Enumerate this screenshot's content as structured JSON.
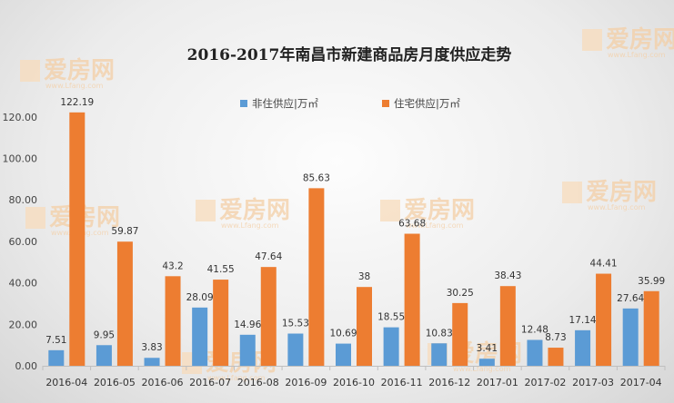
{
  "watermark": {
    "brand": "爱房网",
    "url": "www.Lfang.com"
  },
  "chart_data": {
    "type": "bar",
    "title": "2016-2017年南昌市新建商品房月度供应走势",
    "categories": [
      "2016-04",
      "2016-05",
      "2016-06",
      "2016-07",
      "2016-08",
      "2016-09",
      "2016-10",
      "2016-11",
      "2016-12",
      "2017-01",
      "2017-02",
      "2017-03",
      "2017-04"
    ],
    "series": [
      {
        "name": "非住供应|万㎡",
        "color": "#5b9bd5",
        "values": [
          7.51,
          9.95,
          3.83,
          28.09,
          14.96,
          15.53,
          10.69,
          18.55,
          10.83,
          3.41,
          12.48,
          17.14,
          27.64
        ],
        "labels": [
          "7.51",
          "9.95",
          "3.83",
          "28.09",
          "14.96",
          "15.53",
          "10.69",
          "18.55",
          "10.83",
          "3.41",
          "12.48",
          "17.14",
          "27.64"
        ]
      },
      {
        "name": "住宅供应|万㎡",
        "color": "#ed7d31",
        "values": [
          122.19,
          59.87,
          43.2,
          41.55,
          47.64,
          85.63,
          38,
          63.68,
          30.25,
          38.43,
          8.73,
          44.41,
          35.99
        ],
        "labels": [
          "122.19",
          "59.87",
          "43.2",
          "41.55",
          "47.64",
          "85.63",
          "38",
          "63.68",
          "30.25",
          "38.43",
          "8.73",
          "44.41",
          "35.99"
        ]
      }
    ],
    "yticks": [
      "0.00",
      "20.00",
      "40.00",
      "60.00",
      "80.00",
      "100.00",
      "120.00"
    ],
    "ylim": [
      0,
      130
    ],
    "xlabel": "",
    "ylabel": "",
    "grid": false,
    "legend_position": "top-center"
  }
}
